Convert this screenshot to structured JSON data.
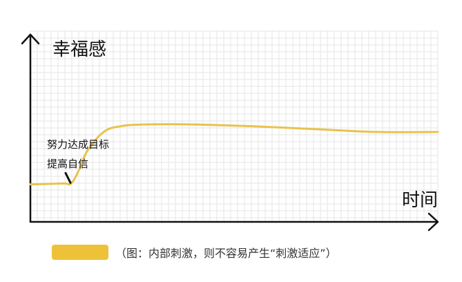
{
  "colors": {
    "curve": "#E8C24E",
    "legend_swatch": "#EDC238",
    "axis": "#111111",
    "grid": "#E6E6E6",
    "marker": "#111111"
  },
  "chart_data": {
    "type": "line",
    "title": "",
    "ylabel": "幸福感",
    "xlabel": "时间",
    "grid": true,
    "legend_position": "bottom",
    "x": [
      0,
      8,
      10,
      12,
      14,
      18,
      22,
      28,
      40,
      55,
      70,
      85,
      100
    ],
    "series": [
      {
        "values": [
          20,
          20.5,
          20.5,
          28,
          38,
          48,
          51,
          52,
          52,
          51,
          49.5,
          48,
          48
        ]
      }
    ],
    "xlim": [
      0,
      100
    ],
    "ylim": [
      0,
      100
    ],
    "annotations": [
      {
        "lines": [
          "努力达成目标",
          "提高自信"
        ],
        "x": 10,
        "y": 20.5
      }
    ]
  },
  "legend": {
    "text": "（图：内部刺激，则不容易产生“刺激适应”）"
  }
}
